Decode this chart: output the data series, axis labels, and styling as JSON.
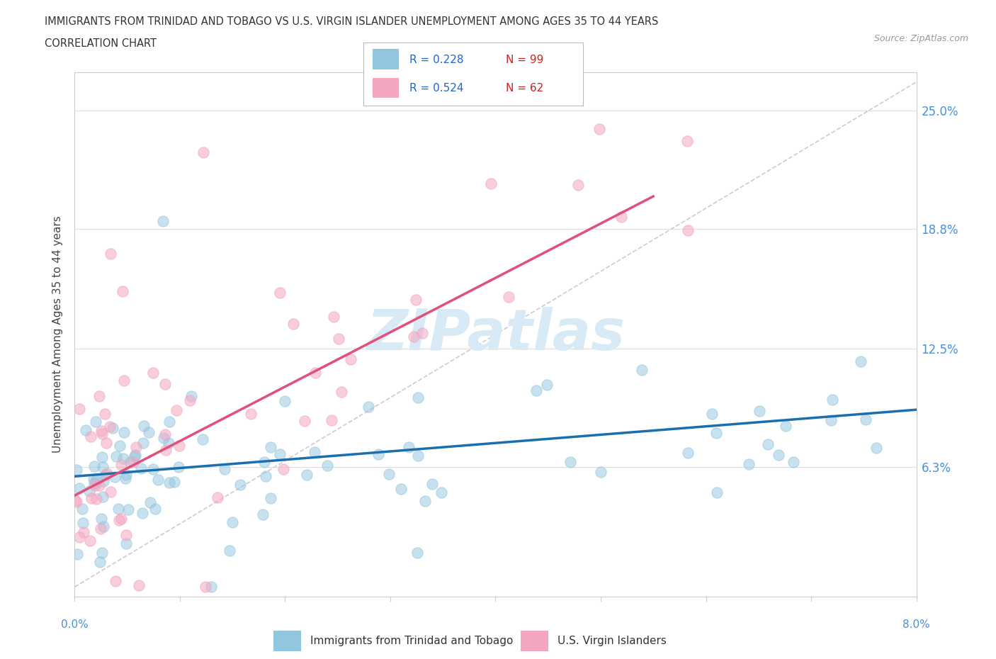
{
  "title_line1": "IMMIGRANTS FROM TRINIDAD AND TOBAGO VS U.S. VIRGIN ISLANDER UNEMPLOYMENT AMONG AGES 35 TO 44 YEARS",
  "title_line2": "CORRELATION CHART",
  "source_text": "Source: ZipAtlas.com",
  "ylabel": "Unemployment Among Ages 35 to 44 years",
  "xlim": [
    0.0,
    0.08
  ],
  "ylim": [
    -0.005,
    0.27
  ],
  "ytick_vals": [
    0.0,
    0.063,
    0.125,
    0.188,
    0.25
  ],
  "ytick_labels": [
    "",
    "6.3%",
    "12.5%",
    "18.8%",
    "25.0%"
  ],
  "color_blue": "#92c5de",
  "color_pink": "#f4a6c0",
  "color_blue_line": "#1a6faf",
  "color_pink_line": "#e0507a",
  "color_diag": "#cccccc",
  "watermark": "ZIPatlas",
  "legend_r1_r": "R = 0.228",
  "legend_r1_n": "N = 99",
  "legend_r2_r": "R = 0.524",
  "legend_r2_n": "N = 62",
  "trend_blue_x0": 0.0,
  "trend_blue_x1": 0.08,
  "trend_blue_y0": 0.058,
  "trend_blue_y1": 0.093,
  "trend_pink_x0": 0.0,
  "trend_pink_x1": 0.055,
  "trend_pink_y0": 0.048,
  "trend_pink_y1": 0.205
}
